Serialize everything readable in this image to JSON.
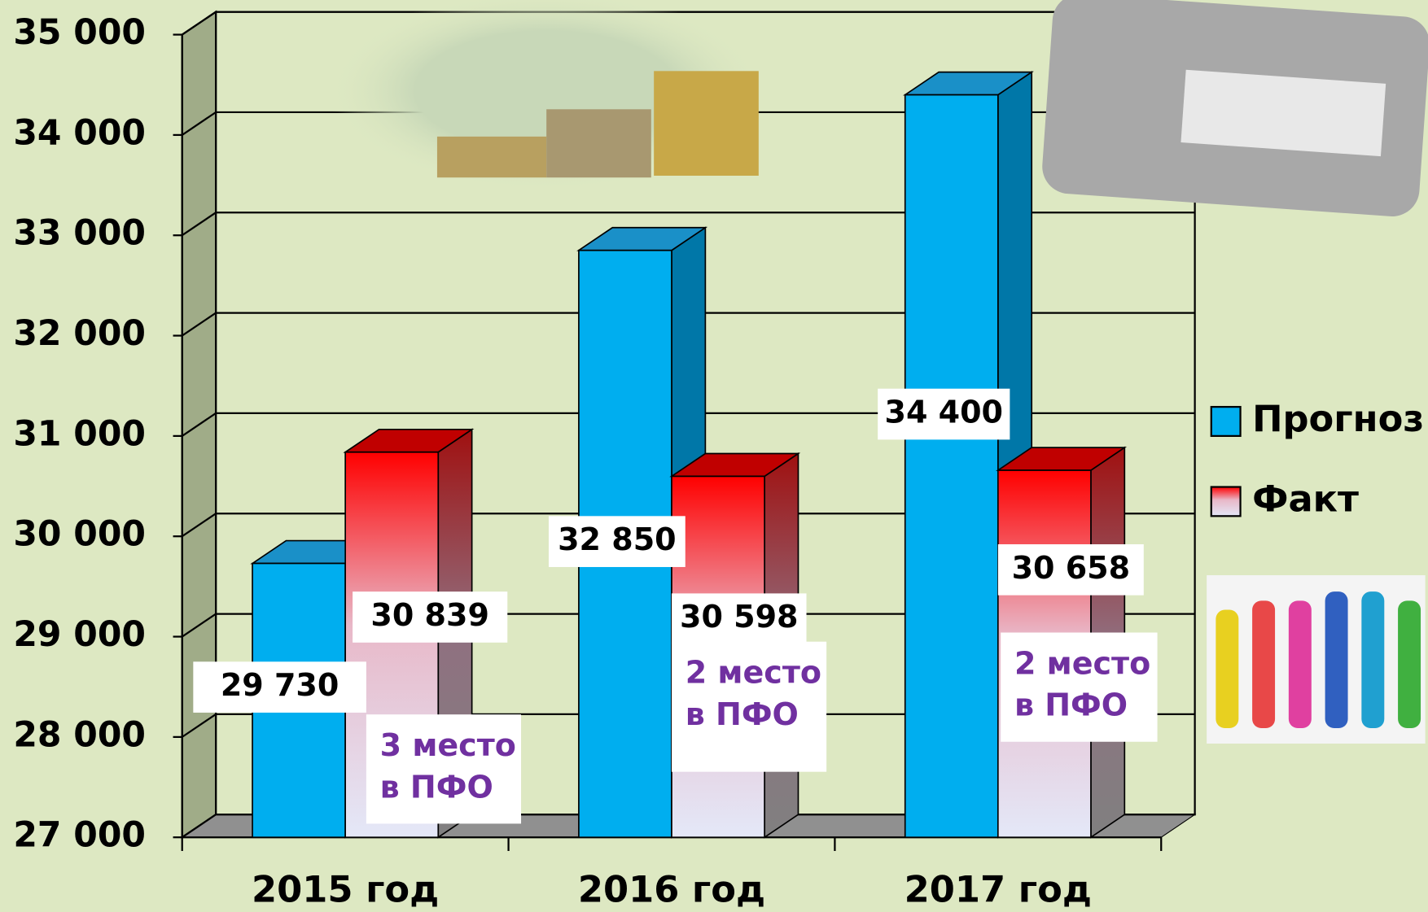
{
  "chart_data": {
    "type": "bar3d",
    "categories": [
      "2015 год",
      "2016 год",
      "2017 год"
    ],
    "series": [
      {
        "name": "Прогноз",
        "color": "#00aeef",
        "values": [
          29730,
          32850,
          34400
        ],
        "value_labels": [
          "29 730",
          "32 850",
          "34 400"
        ]
      },
      {
        "name": "Факт",
        "color": "#ff0000",
        "values": [
          30839,
          30598,
          30658
        ],
        "value_labels": [
          "30 839",
          "30 598",
          "30 658"
        ]
      }
    ],
    "annotations": [
      [
        "3 место",
        "в ПФО"
      ],
      [
        "2 место",
        "в ПФО"
      ],
      [
        "2 место",
        "в ПФО"
      ]
    ],
    "ylim": [
      27000,
      35000
    ],
    "yticks": [
      {
        "value": 27000,
        "label": "27 000"
      },
      {
        "value": 28000,
        "label": "28 000"
      },
      {
        "value": 29000,
        "label": "29 000"
      },
      {
        "value": 30000,
        "label": "30 000"
      },
      {
        "value": 31000,
        "label": "31 000"
      },
      {
        "value": 32000,
        "label": "32 000"
      },
      {
        "value": 33000,
        "label": "33 000"
      },
      {
        "value": 34000,
        "label": "34 000"
      },
      {
        "value": 35000,
        "label": "35 000"
      }
    ],
    "grid": true,
    "legend": "right"
  }
}
